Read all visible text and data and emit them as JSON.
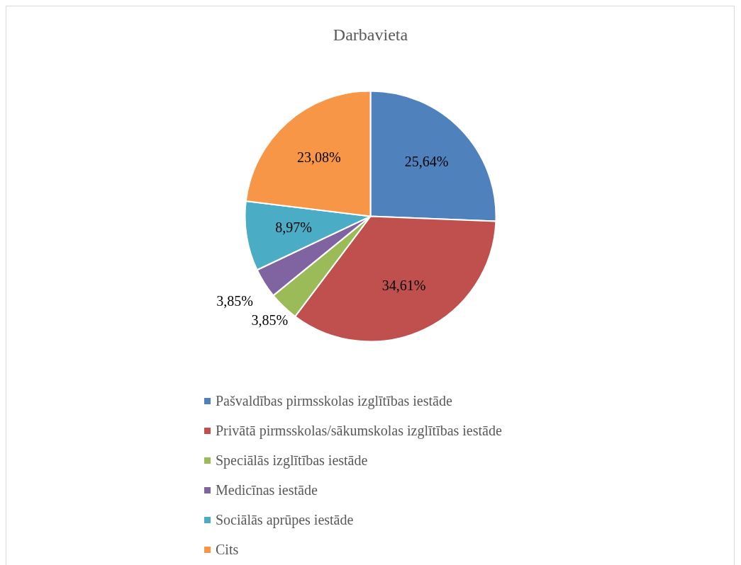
{
  "chart_data": {
    "type": "pie",
    "title": "Darbavieta",
    "categories": [
      "Pašvaldības pirmsskolas izglītības iestāde",
      "Privātā pirmsskolas/sākumskolas izglītības iestāde",
      "Speciālās izglītības iestāde",
      "Medicīnas iestāde",
      "Sociālās aprūpes iestāde",
      "Cits"
    ],
    "values": [
      25.64,
      34.61,
      3.85,
      3.85,
      8.97,
      23.08
    ],
    "value_labels": [
      "25,64%",
      "34,61%",
      "3,85%",
      "3,85%",
      "8,97%",
      "23,08%"
    ],
    "colors": [
      "#4f81bd",
      "#c0504d",
      "#9bbb59",
      "#8064a2",
      "#4bacc6",
      "#f79646"
    ],
    "legend": "bottom"
  }
}
